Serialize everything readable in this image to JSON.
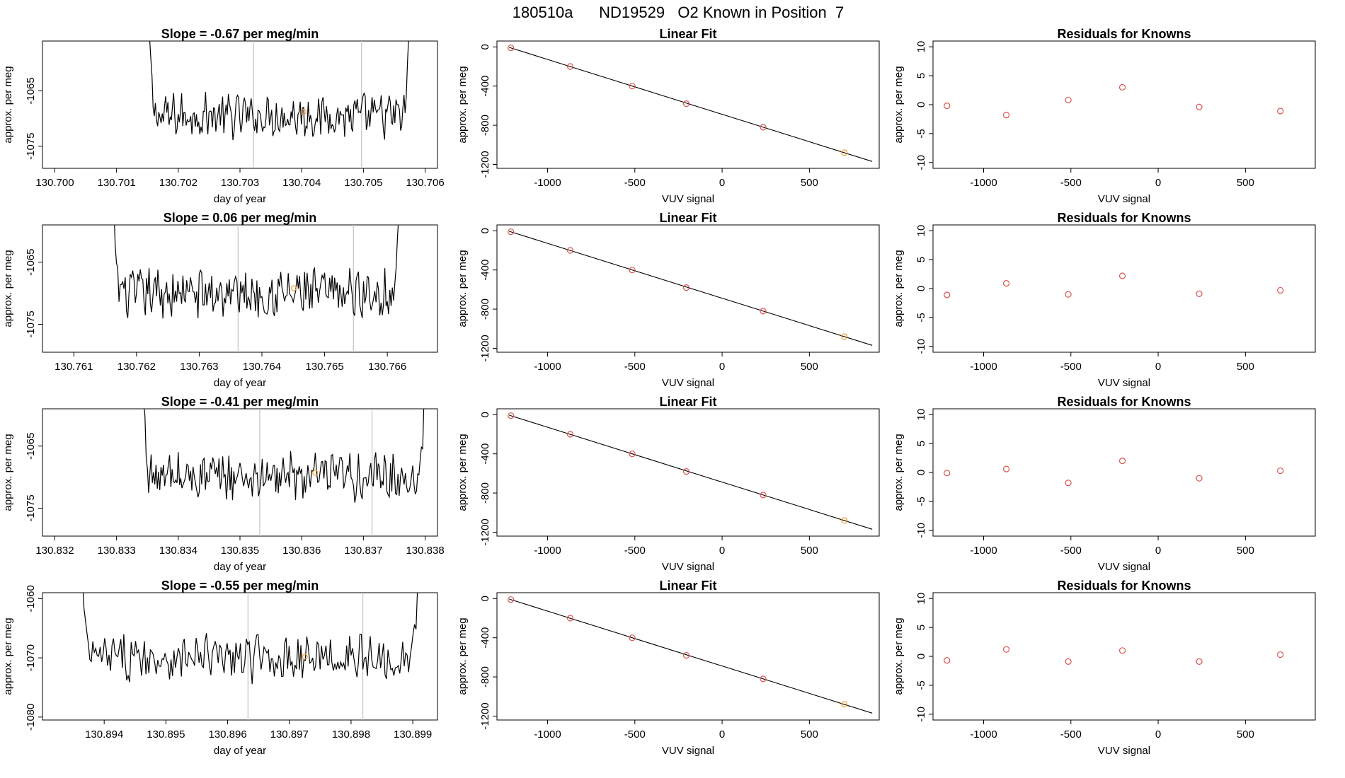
{
  "figure": {
    "title": "180510a      ND19529   O2 Known in Position  7",
    "point_color": "#d9534f",
    "highlight_color": "#f0a030"
  },
  "chart_data": [
    {
      "type": "line",
      "row": 0,
      "title": "Slope =  -0.67  per meg/min",
      "xlabel": "day of year",
      "ylabel": "approx. per meg",
      "xlim": [
        130.6998,
        130.7062
      ],
      "ylim": [
        -1079,
        -1056
      ],
      "xticks": [
        "130.700",
        "130.701",
        "130.702",
        "130.703",
        "130.704",
        "130.705",
        "130.706"
      ],
      "yticks": [
        "-1065",
        "-1075"
      ],
      "xstart": 130.7015,
      "xend": 130.70575,
      "baseline": -1069.5,
      "vlines": [
        130.70322,
        130.70497
      ],
      "highlight": [
        130.70403,
        -1068.8
      ]
    },
    {
      "type": "line",
      "row": 1,
      "title": "Slope =  0.06  per meg/min",
      "xlabel": "day of year",
      "ylabel": "approx. per meg",
      "xlim": [
        130.7605,
        130.7668
      ],
      "ylim": [
        -1079.5,
        -1059
      ],
      "xticks": [
        "130.761",
        "130.762",
        "130.763",
        "130.764",
        "130.765",
        "130.766"
      ],
      "yticks": [
        "-1065",
        "-1075"
      ],
      "xstart": 130.7616,
      "xend": 130.7662,
      "baseline": -1070.0,
      "vlines": [
        130.76362,
        130.76546
      ],
      "highlight": [
        130.76451,
        -1069.2
      ]
    },
    {
      "type": "line",
      "row": 2,
      "title": "Slope =  -0.41  per meg/min",
      "xlabel": "day of year",
      "ylabel": "approx. per meg",
      "xlim": [
        130.8318,
        130.8382
      ],
      "ylim": [
        -1079.5,
        -1059
      ],
      "xticks": [
        "130.832",
        "130.833",
        "130.834",
        "130.835",
        "130.836",
        "130.837",
        "130.838"
      ],
      "yticks": [
        "-1065",
        "-1075"
      ],
      "xstart": 130.8334,
      "xend": 130.838,
      "baseline": -1070.0,
      "vlines": [
        130.83532,
        130.83714
      ],
      "highlight": [
        130.83622,
        -1069.3
      ]
    },
    {
      "type": "line",
      "row": 3,
      "title": "Slope =  -0.55  per meg/min",
      "xlabel": "day of year",
      "ylabel": "approx. per meg",
      "xlim": [
        130.893,
        130.8994
      ],
      "ylim": [
        -1080.5,
        -1059
      ],
      "xticks": [
        "130.894",
        "130.895",
        "130.896",
        "130.897",
        "130.898",
        "130.899"
      ],
      "yticks": [
        "-1060",
        "-1070",
        "-1080"
      ],
      "xstart": 130.8936,
      "xend": 130.8991,
      "baseline": -1070.0,
      "vlines": [
        130.89633,
        130.89819
      ],
      "highlight": [
        130.89725,
        -1069.8
      ]
    },
    {
      "type": "scatter",
      "row": 0,
      "title": "Linear Fit",
      "xlabel": "VUV signal",
      "ylabel": "approx. per meg",
      "xlim": [
        -1290,
        900
      ],
      "ylim": [
        -1240,
        60
      ],
      "xticks": [
        "-1000",
        "-500",
        "0",
        "500"
      ],
      "yticks": [
        "0",
        "-400",
        "-800",
        "-1200"
      ],
      "x": [
        -1210,
        -870,
        -515,
        -205,
        235,
        700
      ],
      "y": [
        -10,
        -200,
        -400,
        -580,
        -820,
        -1080
      ],
      "fit": [
        [
          -1220,
          -5
        ],
        [
          860,
          -1170
        ]
      ]
    },
    {
      "type": "scatter",
      "row": 1,
      "title": "Linear Fit",
      "xlabel": "VUV signal",
      "ylabel": "approx. per meg",
      "xlim": [
        -1290,
        900
      ],
      "ylim": [
        -1240,
        60
      ],
      "xticks": [
        "-1000",
        "-500",
        "0",
        "500"
      ],
      "yticks": [
        "0",
        "-400",
        "-800",
        "-1200"
      ],
      "x": [
        -1210,
        -870,
        -515,
        -205,
        235,
        700
      ],
      "y": [
        -10,
        -200,
        -400,
        -580,
        -820,
        -1080
      ],
      "fit": [
        [
          -1220,
          -5
        ],
        [
          860,
          -1170
        ]
      ]
    },
    {
      "type": "scatter",
      "row": 2,
      "title": "Linear Fit",
      "xlabel": "VUV signal",
      "ylabel": "approx. per meg",
      "xlim": [
        -1290,
        900
      ],
      "ylim": [
        -1240,
        60
      ],
      "xticks": [
        "-1000",
        "-500",
        "0",
        "500"
      ],
      "yticks": [
        "0",
        "-400",
        "-800",
        "-1200"
      ],
      "x": [
        -1210,
        -870,
        -515,
        -205,
        235,
        700
      ],
      "y": [
        -10,
        -200,
        -400,
        -580,
        -820,
        -1080
      ],
      "fit": [
        [
          -1220,
          -5
        ],
        [
          860,
          -1170
        ]
      ]
    },
    {
      "type": "scatter",
      "row": 3,
      "title": "Linear Fit",
      "xlabel": "VUV signal",
      "ylabel": "approx. per meg",
      "xlim": [
        -1290,
        900
      ],
      "ylim": [
        -1240,
        60
      ],
      "xticks": [
        "-1000",
        "-500",
        "0",
        "500"
      ],
      "yticks": [
        "0",
        "-400",
        "-800",
        "-1200"
      ],
      "x": [
        -1210,
        -870,
        -515,
        -205,
        235,
        700
      ],
      "y": [
        -10,
        -200,
        -400,
        -580,
        -820,
        -1080
      ],
      "fit": [
        [
          -1220,
          -5
        ],
        [
          860,
          -1170
        ]
      ]
    },
    {
      "type": "scatter",
      "row": 0,
      "title": "Residuals for Knowns",
      "xlabel": "VUV signal",
      "ylabel": "approx. per meg",
      "xlim": [
        -1290,
        900
      ],
      "ylim": [
        -11,
        11
      ],
      "xticks": [
        "-1000",
        "-500",
        "0",
        "500"
      ],
      "yticks": [
        "10",
        "5",
        "0",
        "-5",
        "-10"
      ],
      "x": [
        -1210,
        -870,
        -515,
        -205,
        235,
        700
      ],
      "y": [
        -0.2,
        -1.8,
        0.8,
        3.0,
        -0.4,
        -1.1
      ]
    },
    {
      "type": "scatter",
      "row": 1,
      "title": "Residuals for Knowns",
      "xlabel": "VUV signal",
      "ylabel": "approx. per meg",
      "xlim": [
        -1290,
        900
      ],
      "ylim": [
        -11,
        11
      ],
      "xticks": [
        "-1000",
        "-500",
        "0",
        "500"
      ],
      "yticks": [
        "10",
        "5",
        "0",
        "-5",
        "-10"
      ],
      "x": [
        -1210,
        -870,
        -515,
        -205,
        235,
        700
      ],
      "y": [
        -1.1,
        0.9,
        -1.0,
        2.2,
        -0.9,
        -0.3
      ]
    },
    {
      "type": "scatter",
      "row": 2,
      "title": "Residuals for Knowns",
      "xlabel": "VUV signal",
      "ylabel": "approx. per meg",
      "xlim": [
        -1290,
        900
      ],
      "ylim": [
        -11,
        11
      ],
      "xticks": [
        "-1000",
        "-500",
        "0",
        "500"
      ],
      "yticks": [
        "10",
        "5",
        "0",
        "-5",
        "-10"
      ],
      "x": [
        -1210,
        -870,
        -515,
        -205,
        235,
        700
      ],
      "y": [
        -0.1,
        0.6,
        -1.8,
        2.0,
        -1.0,
        0.3
      ]
    },
    {
      "type": "scatter",
      "row": 3,
      "title": "Residuals for Knowns",
      "xlabel": "VUV signal",
      "ylabel": "approx. per meg",
      "xlim": [
        -1290,
        900
      ],
      "ylim": [
        -11,
        11
      ],
      "xticks": [
        "-1000",
        "-500",
        "0",
        "500"
      ],
      "yticks": [
        "10",
        "5",
        "0",
        "-5",
        "-10"
      ],
      "x": [
        -1210,
        -870,
        -515,
        -205,
        235,
        700
      ],
      "y": [
        -0.7,
        1.2,
        -0.9,
        1.0,
        -0.9,
        0.3
      ]
    }
  ]
}
